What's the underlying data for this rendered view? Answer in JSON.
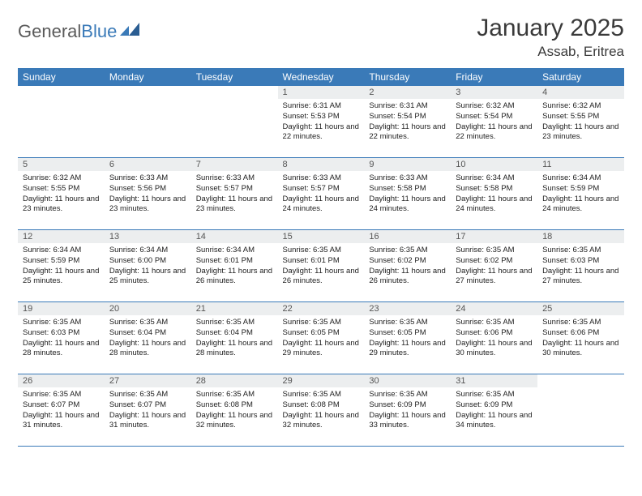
{
  "brand": {
    "part1": "General",
    "part2": "Blue"
  },
  "title": "January 2025",
  "location": "Assab, Eritrea",
  "colors": {
    "header_bg": "#3a7ab8",
    "header_fg": "#ffffff",
    "daynum_bg": "#eceeef",
    "row_border": "#3a7ab8",
    "text": "#222222",
    "title": "#3a3a3a",
    "logo_gray": "#5a5a5a",
    "logo_blue": "#3a7ab8"
  },
  "weekdays": [
    "Sunday",
    "Monday",
    "Tuesday",
    "Wednesday",
    "Thursday",
    "Friday",
    "Saturday"
  ],
  "weeks": [
    [
      {
        "empty": true
      },
      {
        "empty": true
      },
      {
        "empty": true
      },
      {
        "n": "1",
        "sr": "6:31 AM",
        "ss": "5:53 PM",
        "dl": "11 hours and 22 minutes."
      },
      {
        "n": "2",
        "sr": "6:31 AM",
        "ss": "5:54 PM",
        "dl": "11 hours and 22 minutes."
      },
      {
        "n": "3",
        "sr": "6:32 AM",
        "ss": "5:54 PM",
        "dl": "11 hours and 22 minutes."
      },
      {
        "n": "4",
        "sr": "6:32 AM",
        "ss": "5:55 PM",
        "dl": "11 hours and 23 minutes."
      }
    ],
    [
      {
        "n": "5",
        "sr": "6:32 AM",
        "ss": "5:55 PM",
        "dl": "11 hours and 23 minutes."
      },
      {
        "n": "6",
        "sr": "6:33 AM",
        "ss": "5:56 PM",
        "dl": "11 hours and 23 minutes."
      },
      {
        "n": "7",
        "sr": "6:33 AM",
        "ss": "5:57 PM",
        "dl": "11 hours and 23 minutes."
      },
      {
        "n": "8",
        "sr": "6:33 AM",
        "ss": "5:57 PM",
        "dl": "11 hours and 24 minutes."
      },
      {
        "n": "9",
        "sr": "6:33 AM",
        "ss": "5:58 PM",
        "dl": "11 hours and 24 minutes."
      },
      {
        "n": "10",
        "sr": "6:34 AM",
        "ss": "5:58 PM",
        "dl": "11 hours and 24 minutes."
      },
      {
        "n": "11",
        "sr": "6:34 AM",
        "ss": "5:59 PM",
        "dl": "11 hours and 24 minutes."
      }
    ],
    [
      {
        "n": "12",
        "sr": "6:34 AM",
        "ss": "5:59 PM",
        "dl": "11 hours and 25 minutes."
      },
      {
        "n": "13",
        "sr": "6:34 AM",
        "ss": "6:00 PM",
        "dl": "11 hours and 25 minutes."
      },
      {
        "n": "14",
        "sr": "6:34 AM",
        "ss": "6:01 PM",
        "dl": "11 hours and 26 minutes."
      },
      {
        "n": "15",
        "sr": "6:35 AM",
        "ss": "6:01 PM",
        "dl": "11 hours and 26 minutes."
      },
      {
        "n": "16",
        "sr": "6:35 AM",
        "ss": "6:02 PM",
        "dl": "11 hours and 26 minutes."
      },
      {
        "n": "17",
        "sr": "6:35 AM",
        "ss": "6:02 PM",
        "dl": "11 hours and 27 minutes."
      },
      {
        "n": "18",
        "sr": "6:35 AM",
        "ss": "6:03 PM",
        "dl": "11 hours and 27 minutes."
      }
    ],
    [
      {
        "n": "19",
        "sr": "6:35 AM",
        "ss": "6:03 PM",
        "dl": "11 hours and 28 minutes."
      },
      {
        "n": "20",
        "sr": "6:35 AM",
        "ss": "6:04 PM",
        "dl": "11 hours and 28 minutes."
      },
      {
        "n": "21",
        "sr": "6:35 AM",
        "ss": "6:04 PM",
        "dl": "11 hours and 28 minutes."
      },
      {
        "n": "22",
        "sr": "6:35 AM",
        "ss": "6:05 PM",
        "dl": "11 hours and 29 minutes."
      },
      {
        "n": "23",
        "sr": "6:35 AM",
        "ss": "6:05 PM",
        "dl": "11 hours and 29 minutes."
      },
      {
        "n": "24",
        "sr": "6:35 AM",
        "ss": "6:06 PM",
        "dl": "11 hours and 30 minutes."
      },
      {
        "n": "25",
        "sr": "6:35 AM",
        "ss": "6:06 PM",
        "dl": "11 hours and 30 minutes."
      }
    ],
    [
      {
        "n": "26",
        "sr": "6:35 AM",
        "ss": "6:07 PM",
        "dl": "11 hours and 31 minutes."
      },
      {
        "n": "27",
        "sr": "6:35 AM",
        "ss": "6:07 PM",
        "dl": "11 hours and 31 minutes."
      },
      {
        "n": "28",
        "sr": "6:35 AM",
        "ss": "6:08 PM",
        "dl": "11 hours and 32 minutes."
      },
      {
        "n": "29",
        "sr": "6:35 AM",
        "ss": "6:08 PM",
        "dl": "11 hours and 32 minutes."
      },
      {
        "n": "30",
        "sr": "6:35 AM",
        "ss": "6:09 PM",
        "dl": "11 hours and 33 minutes."
      },
      {
        "n": "31",
        "sr": "6:35 AM",
        "ss": "6:09 PM",
        "dl": "11 hours and 34 minutes."
      },
      {
        "empty": true
      }
    ]
  ],
  "labels": {
    "sunrise": "Sunrise:",
    "sunset": "Sunset:",
    "daylight": "Daylight:"
  }
}
